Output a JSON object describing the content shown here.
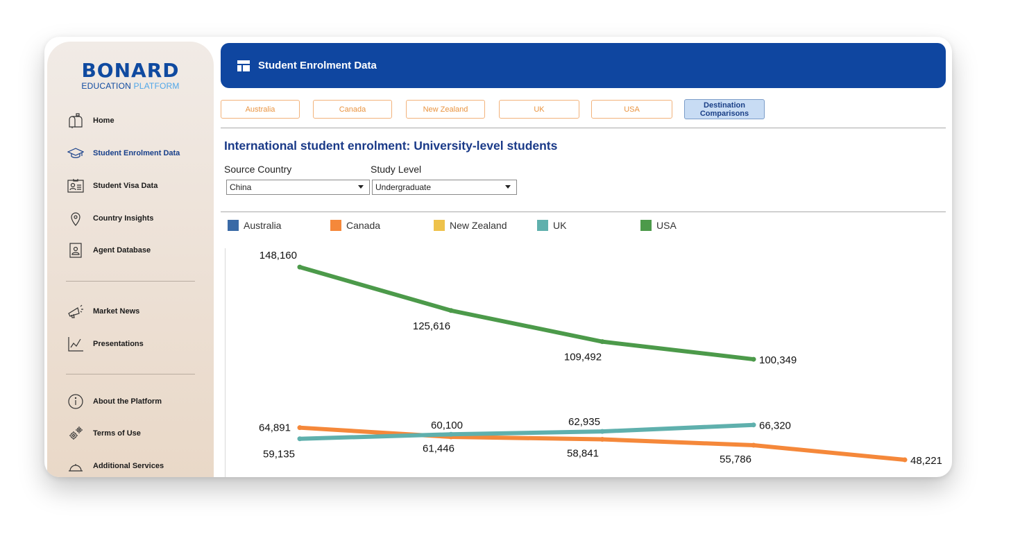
{
  "sidebar": {
    "brand": "BONARD",
    "sub_a": "EDUCATION ",
    "sub_b": "PLATFORM",
    "items": [
      {
        "label": "Home",
        "icon": "mailbox-icon"
      },
      {
        "label": "Student Enrolment Data",
        "icon": "graduation-cap-icon",
        "active": true
      },
      {
        "label": "Student Visa Data",
        "icon": "id-card-icon"
      },
      {
        "label": "Country Insights",
        "icon": "map-pin-icon"
      },
      {
        "label": "Agent Database",
        "icon": "contact-card-icon"
      },
      {
        "label": "Market News",
        "icon": "megaphone-icon"
      },
      {
        "label": "Presentations",
        "icon": "line-chart-icon"
      },
      {
        "label": "About the Platform",
        "icon": "info-icon"
      },
      {
        "label": "Terms of Use",
        "icon": "gears-icon"
      },
      {
        "label": "Additional Services",
        "icon": "service-bell-icon"
      }
    ]
  },
  "header": {
    "title": "Student Enrolment Data"
  },
  "tabs": [
    {
      "label": "Australia"
    },
    {
      "label": "Canada"
    },
    {
      "label": "New Zealand"
    },
    {
      "label": "UK"
    },
    {
      "label": "USA"
    },
    {
      "label": "Destination Comparisons",
      "selected": true
    }
  ],
  "section_title": "International student enrolment: University-level students",
  "filters": {
    "source_label": "Source Country",
    "source_value": "China",
    "level_label": "Study Level",
    "level_value": "Undergraduate"
  },
  "colors": {
    "Australia": "#3a6aa6",
    "Canada": "#f5883a",
    "New Zealand": "#eec24b",
    "UK": "#5fb0ad",
    "USA": "#4c9a4a",
    "header": "#0f46a0"
  },
  "chart_data": {
    "type": "line",
    "legend": [
      "Australia",
      "Canada",
      "New Zealand",
      "UK",
      "USA"
    ],
    "legend_position": "top-left",
    "grid": false,
    "series": [
      {
        "name": "USA",
        "points": [
          [
            0,
            148160
          ],
          [
            1,
            125616
          ],
          [
            2,
            109492
          ],
          [
            3,
            100349
          ]
        ],
        "labels": [
          "148,160",
          "125,616",
          "109,492",
          "100,349"
        ]
      },
      {
        "name": "UK",
        "points": [
          [
            0,
            59135
          ],
          [
            1,
            61446
          ],
          [
            2,
            62935
          ],
          [
            3,
            66320
          ]
        ],
        "labels": [
          "59,135",
          "61,446",
          "62,935",
          "66,320"
        ]
      },
      {
        "name": "Canada",
        "points": [
          [
            0,
            64891
          ],
          [
            1,
            60100
          ],
          [
            2,
            58841
          ],
          [
            3,
            55786
          ],
          [
            4,
            48221
          ]
        ],
        "labels": [
          "64,891",
          "60,100",
          "58,841",
          "55,786",
          "48,221"
        ]
      }
    ]
  }
}
